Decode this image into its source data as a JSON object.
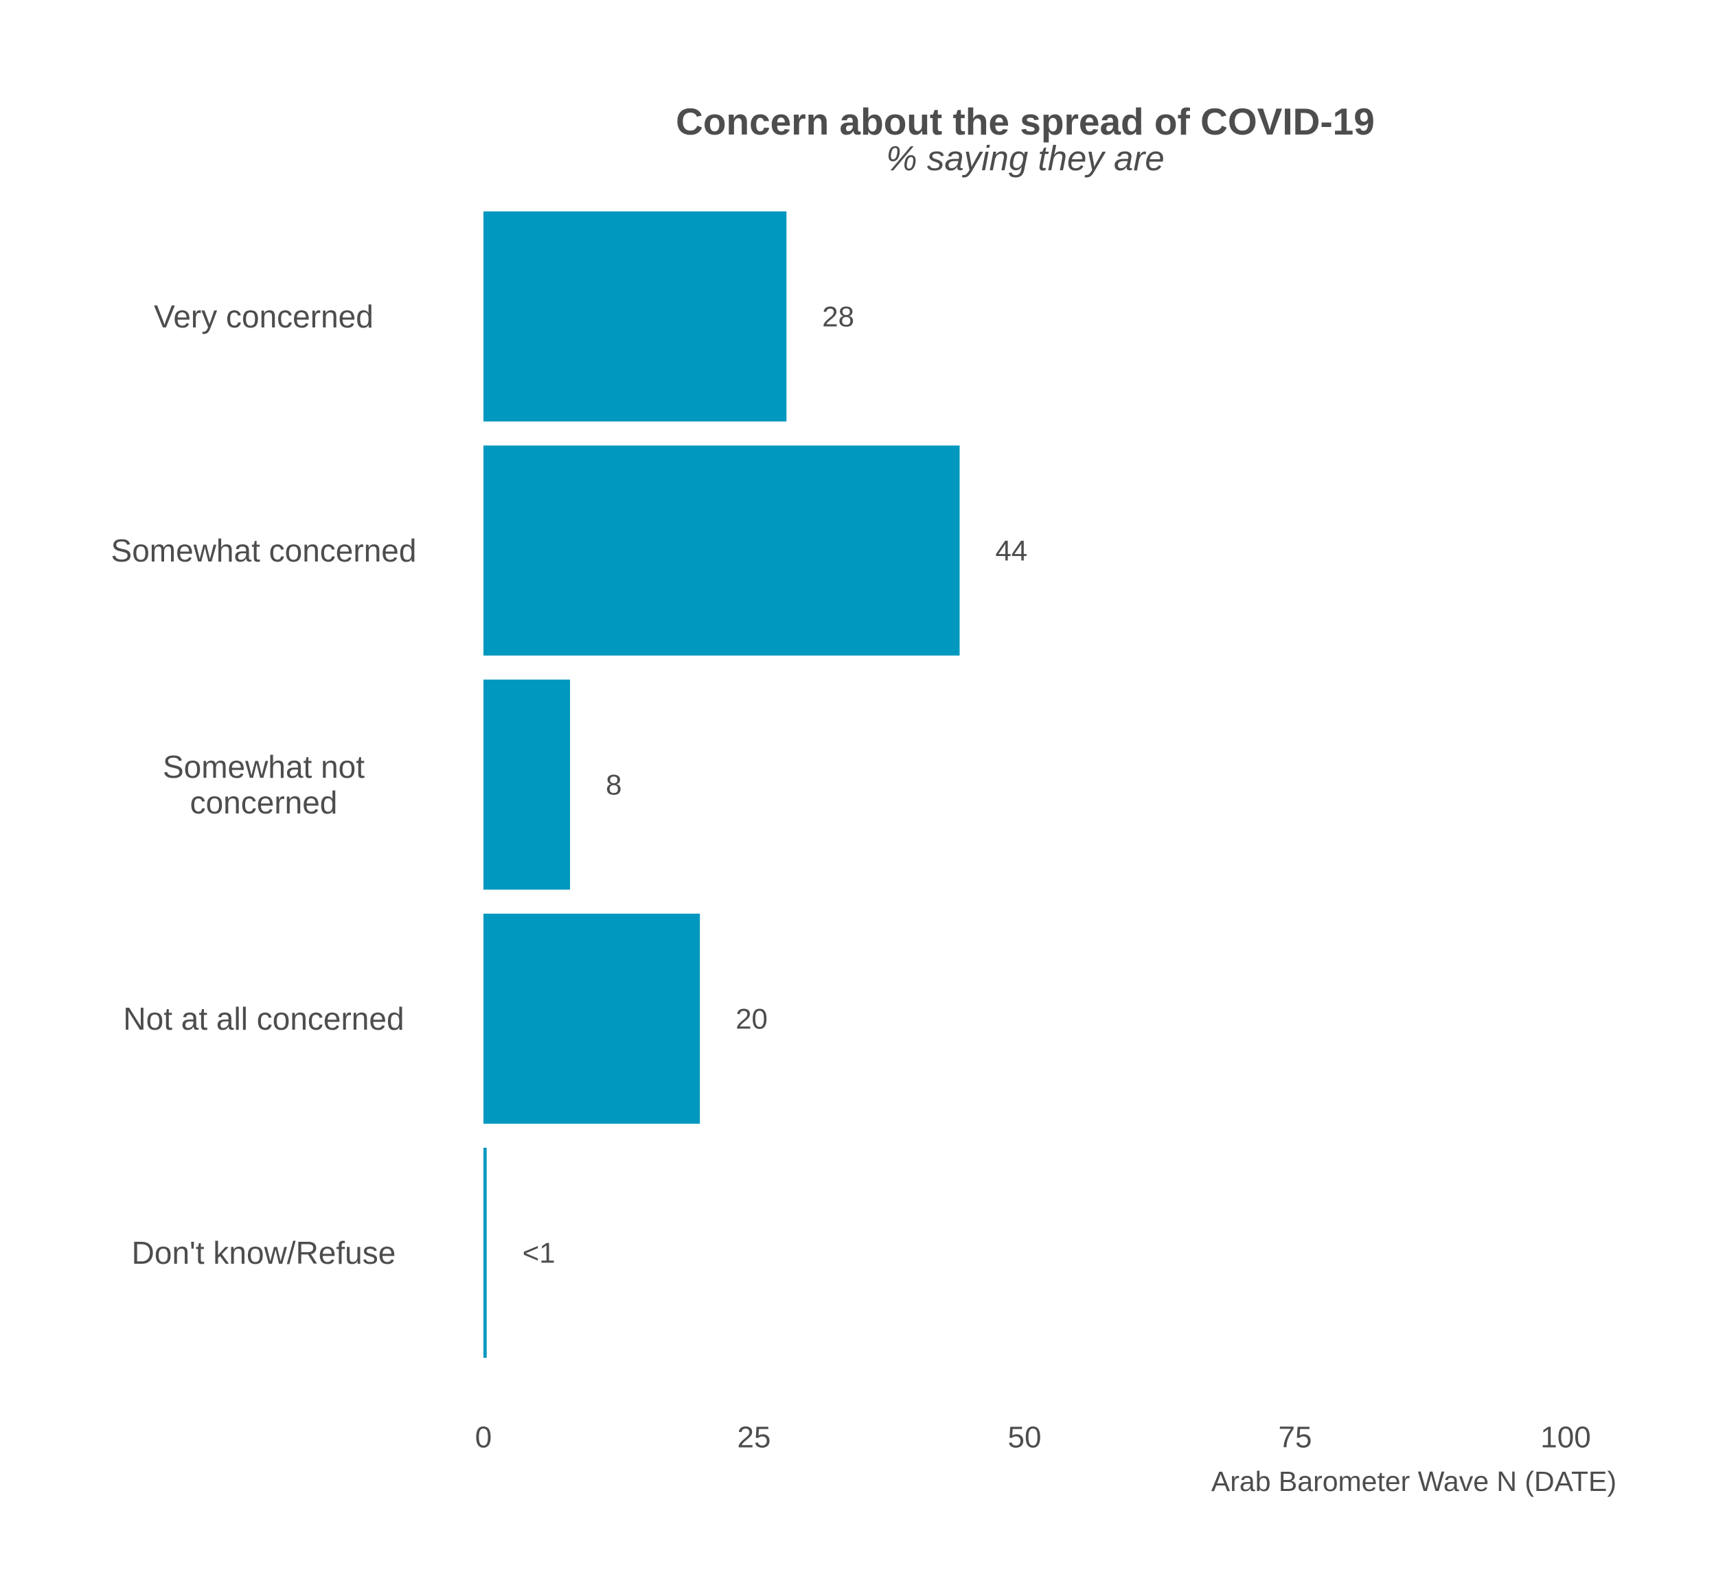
{
  "chart_data": {
    "type": "bar",
    "orientation": "horizontal",
    "title": "Concern about the spread of COVID-19",
    "subtitle": "% saying they are",
    "categories": [
      [
        "Very concerned"
      ],
      [
        "Somewhat concerned"
      ],
      [
        "Somewhat not",
        "concerned"
      ],
      [
        "Not at all concerned"
      ],
      [
        "Don't know/Refuse"
      ]
    ],
    "values": [
      28,
      44,
      8,
      20,
      0.3
    ],
    "value_labels": [
      "28",
      "44",
      "8",
      "20",
      "<1"
    ],
    "xlim": [
      0,
      100
    ],
    "x_ticks": [
      0,
      25,
      50,
      75,
      100
    ],
    "x_tick_labels": [
      "0",
      "25",
      "50",
      "75",
      "100"
    ],
    "caption": "Arab Barometer Wave N (DATE)",
    "grid": false,
    "legend": "none",
    "bar_color": "#0098bf",
    "text_color": "#4d4d4d"
  }
}
